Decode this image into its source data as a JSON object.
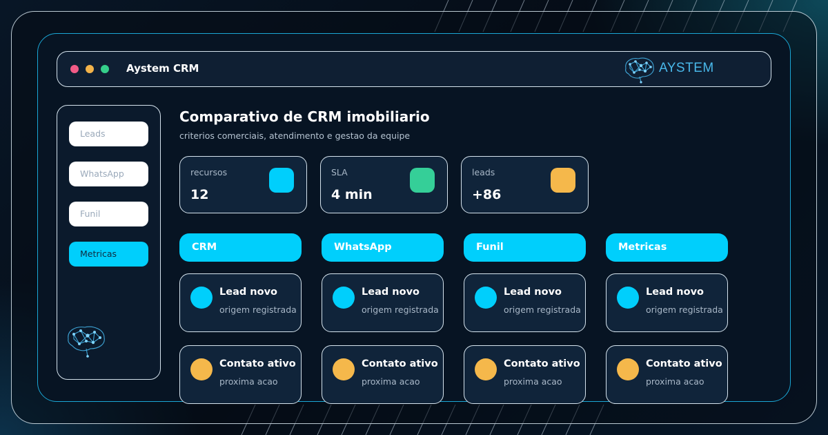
{
  "app": {
    "title": "Aystem CRM",
    "logo_text": "AYSTEM"
  },
  "sidebar": {
    "items": [
      {
        "label": "Leads",
        "active": false
      },
      {
        "label": "WhatsApp",
        "active": false
      },
      {
        "label": "Funil",
        "active": false
      },
      {
        "label": "Metricas",
        "active": true
      }
    ]
  },
  "main": {
    "title": "Comparativo de CRM imobiliario",
    "subtitle": "criterios comerciais, atendimento e gestao da equipe",
    "stats": [
      {
        "label": "recursos",
        "value": "12",
        "color": "#00cffc"
      },
      {
        "label": "SLA",
        "value": "4 min",
        "color": "#35cf98"
      },
      {
        "label": "leads",
        "value": "+86",
        "color": "#f5b84b"
      }
    ],
    "columns": [
      {
        "header": "CRM",
        "cards": [
          {
            "title": "Lead novo",
            "sub": "origem registrada",
            "color": "#00cffc"
          },
          {
            "title": "Contato ativo",
            "sub": "proxima acao",
            "color": "#f5b84b"
          }
        ]
      },
      {
        "header": "WhatsApp",
        "cards": [
          {
            "title": "Lead novo",
            "sub": "origem registrada",
            "color": "#00cffc"
          },
          {
            "title": "Contato ativo",
            "sub": "proxima acao",
            "color": "#f5b84b"
          }
        ]
      },
      {
        "header": "Funil",
        "cards": [
          {
            "title": "Lead novo",
            "sub": "origem registrada",
            "color": "#00cffc"
          },
          {
            "title": "Contato ativo",
            "sub": "proxima acao",
            "color": "#f5b84b"
          }
        ]
      },
      {
        "header": "Metricas",
        "cards": [
          {
            "title": "Lead novo",
            "sub": "origem registrada",
            "color": "#00cffc"
          },
          {
            "title": "Contato ativo",
            "sub": "proxima acao",
            "color": "#f5b84b"
          }
        ]
      }
    ]
  },
  "colors": {
    "accent": "#00cffc",
    "window_border": "#1aa7d6",
    "background": "#06101c"
  }
}
